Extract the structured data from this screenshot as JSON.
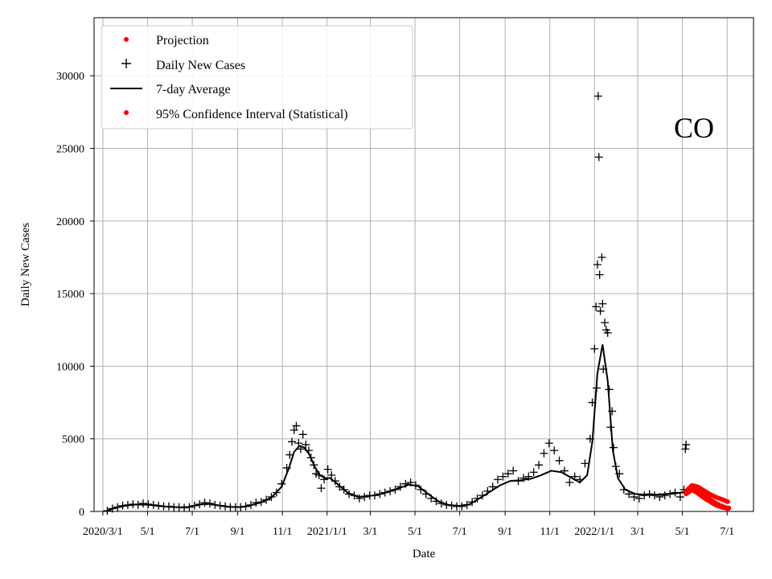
{
  "chart_data": {
    "type": "scatter",
    "title": "",
    "annotation": "CO",
    "xlabel": "Date",
    "ylabel": "Daily New Cases",
    "x_axis_type": "date",
    "xlim": [
      "2020-02-18",
      "2022-08-06"
    ],
    "ylim": [
      0,
      34000
    ],
    "grid": true,
    "legend_position": "upper-left",
    "x_ticks": [
      {
        "date": "2020-03-01",
        "label": "2020/3/1"
      },
      {
        "date": "2020-05-01",
        "label": "5/1"
      },
      {
        "date": "2020-07-01",
        "label": "7/1"
      },
      {
        "date": "2020-09-01",
        "label": "9/1"
      },
      {
        "date": "2020-11-01",
        "label": "11/1"
      },
      {
        "date": "2021-01-01",
        "label": "2021/1/1"
      },
      {
        "date": "2021-03-01",
        "label": "3/1"
      },
      {
        "date": "2021-05-01",
        "label": "5/1"
      },
      {
        "date": "2021-07-01",
        "label": "7/1"
      },
      {
        "date": "2021-09-01",
        "label": "9/1"
      },
      {
        "date": "2021-11-01",
        "label": "11/1"
      },
      {
        "date": "2022-01-01",
        "label": "2022/1/1"
      },
      {
        "date": "2022-03-01",
        "label": "3/1"
      },
      {
        "date": "2022-05-01",
        "label": "5/1"
      },
      {
        "date": "2022-07-01",
        "label": "7/1"
      }
    ],
    "y_ticks": [
      0,
      5000,
      10000,
      15000,
      20000,
      25000,
      30000
    ],
    "colors": {
      "daily": "#000000",
      "average": "#000000",
      "projection": "#ff0000",
      "ci": "#ff0000"
    },
    "series": [
      {
        "name": "Projection",
        "style": "red-dot",
        "points": [
          [
            "2022-05-06",
            1300
          ],
          [
            "2022-05-10",
            1550
          ],
          [
            "2022-05-14",
            1650
          ],
          [
            "2022-05-18",
            1580
          ],
          [
            "2022-05-22",
            1450
          ],
          [
            "2022-05-26",
            1300
          ],
          [
            "2022-05-30",
            1150
          ],
          [
            "2022-06-03",
            1000
          ],
          [
            "2022-06-07",
            850
          ],
          [
            "2022-06-11",
            700
          ],
          [
            "2022-06-15",
            580
          ],
          [
            "2022-06-19",
            470
          ],
          [
            "2022-06-23",
            380
          ],
          [
            "2022-06-27",
            300
          ],
          [
            "2022-07-03",
            230
          ]
        ]
      },
      {
        "name": "Daily New Cases",
        "style": "plus",
        "points": [
          [
            "2020-03-07",
            50
          ],
          [
            "2020-03-14",
            200
          ],
          [
            "2020-03-21",
            300
          ],
          [
            "2020-03-28",
            400
          ],
          [
            "2020-04-04",
            450
          ],
          [
            "2020-04-11",
            500
          ],
          [
            "2020-04-18",
            450
          ],
          [
            "2020-04-25",
            550
          ],
          [
            "2020-05-02",
            500
          ],
          [
            "2020-05-09",
            450
          ],
          [
            "2020-05-16",
            400
          ],
          [
            "2020-05-23",
            350
          ],
          [
            "2020-05-30",
            350
          ],
          [
            "2020-06-06",
            300
          ],
          [
            "2020-06-13",
            300
          ],
          [
            "2020-06-20",
            250
          ],
          [
            "2020-06-27",
            300
          ],
          [
            "2020-07-04",
            400
          ],
          [
            "2020-07-11",
            500
          ],
          [
            "2020-07-18",
            600
          ],
          [
            "2020-07-25",
            550
          ],
          [
            "2020-08-01",
            450
          ],
          [
            "2020-08-08",
            400
          ],
          [
            "2020-08-15",
            350
          ],
          [
            "2020-08-22",
            300
          ],
          [
            "2020-08-29",
            300
          ],
          [
            "2020-09-05",
            300
          ],
          [
            "2020-09-12",
            350
          ],
          [
            "2020-09-19",
            450
          ],
          [
            "2020-09-26",
            600
          ],
          [
            "2020-10-03",
            650
          ],
          [
            "2020-10-10",
            800
          ],
          [
            "2020-10-17",
            1000
          ],
          [
            "2020-10-24",
            1300
          ],
          [
            "2020-10-31",
            1900
          ],
          [
            "2020-11-07",
            3000
          ],
          [
            "2020-11-11",
            3900
          ],
          [
            "2020-11-14",
            4800
          ],
          [
            "2020-11-17",
            5600
          ],
          [
            "2020-11-20",
            5900
          ],
          [
            "2020-11-23",
            4700
          ],
          [
            "2020-11-26",
            4300
          ],
          [
            "2020-11-29",
            5300
          ],
          [
            "2020-12-03",
            4600
          ],
          [
            "2020-12-07",
            4200
          ],
          [
            "2020-12-10",
            3700
          ],
          [
            "2020-12-14",
            3200
          ],
          [
            "2020-12-17",
            2600
          ],
          [
            "2020-12-21",
            2500
          ],
          [
            "2020-12-24",
            1600
          ],
          [
            "2020-12-28",
            2200
          ],
          [
            "2021-01-02",
            2900
          ],
          [
            "2021-01-07",
            2500
          ],
          [
            "2021-01-12",
            2100
          ],
          [
            "2021-01-18",
            1700
          ],
          [
            "2021-01-24",
            1500
          ],
          [
            "2021-01-31",
            1200
          ],
          [
            "2021-02-07",
            1100
          ],
          [
            "2021-02-14",
            900
          ],
          [
            "2021-02-21",
            1000
          ],
          [
            "2021-02-28",
            1100
          ],
          [
            "2021-03-07",
            1100
          ],
          [
            "2021-03-14",
            1200
          ],
          [
            "2021-03-21",
            1300
          ],
          [
            "2021-03-28",
            1400
          ],
          [
            "2021-04-04",
            1500
          ],
          [
            "2021-04-11",
            1700
          ],
          [
            "2021-04-18",
            1900
          ],
          [
            "2021-04-25",
            2000
          ],
          [
            "2021-05-02",
            1800
          ],
          [
            "2021-05-09",
            1500
          ],
          [
            "2021-05-16",
            1200
          ],
          [
            "2021-05-23",
            900
          ],
          [
            "2021-05-30",
            700
          ],
          [
            "2021-06-06",
            550
          ],
          [
            "2021-06-13",
            450
          ],
          [
            "2021-06-20",
            400
          ],
          [
            "2021-06-27",
            350
          ],
          [
            "2021-07-04",
            350
          ],
          [
            "2021-07-11",
            450
          ],
          [
            "2021-07-18",
            650
          ],
          [
            "2021-07-25",
            900
          ],
          [
            "2021-08-01",
            1100
          ],
          [
            "2021-08-08",
            1400
          ],
          [
            "2021-08-15",
            1700
          ],
          [
            "2021-08-22",
            2200
          ],
          [
            "2021-08-29",
            2400
          ],
          [
            "2021-09-05",
            2600
          ],
          [
            "2021-09-12",
            2800
          ],
          [
            "2021-09-19",
            2100
          ],
          [
            "2021-09-26",
            2300
          ],
          [
            "2021-10-03",
            2400
          ],
          [
            "2021-10-10",
            2700
          ],
          [
            "2021-10-17",
            3200
          ],
          [
            "2021-10-24",
            4000
          ],
          [
            "2021-10-31",
            4700
          ],
          [
            "2021-11-07",
            4200
          ],
          [
            "2021-11-14",
            3500
          ],
          [
            "2021-11-21",
            2800
          ],
          [
            "2021-11-28",
            2000
          ],
          [
            "2021-12-05",
            2400
          ],
          [
            "2021-12-12",
            2200
          ],
          [
            "2021-12-19",
            3300
          ],
          [
            "2021-12-26",
            5000
          ],
          [
            "2021-12-29",
            7500
          ],
          [
            "2022-01-01",
            11200
          ],
          [
            "2022-01-03",
            14100
          ],
          [
            "2022-01-04",
            8500
          ],
          [
            "2022-01-05",
            17000
          ],
          [
            "2022-01-06",
            28600
          ],
          [
            "2022-01-07",
            24400
          ],
          [
            "2022-01-08",
            16300
          ],
          [
            "2022-01-09",
            13800
          ],
          [
            "2022-01-11",
            17500
          ],
          [
            "2022-01-12",
            14300
          ],
          [
            "2022-01-13",
            9800
          ],
          [
            "2022-01-15",
            13000
          ],
          [
            "2022-01-17",
            12500
          ],
          [
            "2022-01-19",
            12300
          ],
          [
            "2022-01-21",
            8400
          ],
          [
            "2022-01-23",
            5800
          ],
          [
            "2022-01-25",
            6900
          ],
          [
            "2022-01-27",
            4400
          ],
          [
            "2022-01-30",
            3100
          ],
          [
            "2022-02-04",
            2600
          ],
          [
            "2022-02-10",
            1500
          ],
          [
            "2022-02-17",
            1200
          ],
          [
            "2022-02-24",
            1000
          ],
          [
            "2022-03-03",
            900
          ],
          [
            "2022-03-10",
            1100
          ],
          [
            "2022-03-17",
            1200
          ],
          [
            "2022-03-24",
            1100
          ],
          [
            "2022-03-31",
            1000
          ],
          [
            "2022-04-07",
            1100
          ],
          [
            "2022-04-14",
            1200
          ],
          [
            "2022-04-21",
            1300
          ],
          [
            "2022-04-28",
            1000
          ],
          [
            "2022-05-03",
            1500
          ],
          [
            "2022-05-05",
            4300
          ],
          [
            "2022-05-06",
            4600
          ]
        ]
      },
      {
        "name": "7-day Average",
        "style": "line",
        "points": [
          [
            "2020-03-07",
            80
          ],
          [
            "2020-03-21",
            280
          ],
          [
            "2020-04-04",
            420
          ],
          [
            "2020-04-18",
            480
          ],
          [
            "2020-05-02",
            460
          ],
          [
            "2020-05-16",
            380
          ],
          [
            "2020-05-30",
            320
          ],
          [
            "2020-06-13",
            280
          ],
          [
            "2020-06-27",
            310
          ],
          [
            "2020-07-11",
            470
          ],
          [
            "2020-07-25",
            520
          ],
          [
            "2020-08-08",
            400
          ],
          [
            "2020-08-22",
            320
          ],
          [
            "2020-09-05",
            300
          ],
          [
            "2020-09-19",
            420
          ],
          [
            "2020-10-03",
            620
          ],
          [
            "2020-10-17",
            950
          ],
          [
            "2020-10-31",
            1700
          ],
          [
            "2020-11-10",
            3000
          ],
          [
            "2020-11-17",
            4100
          ],
          [
            "2020-11-24",
            4500
          ],
          [
            "2020-12-01",
            4400
          ],
          [
            "2020-12-08",
            3900
          ],
          [
            "2020-12-15",
            3100
          ],
          [
            "2020-12-22",
            2500
          ],
          [
            "2020-12-29",
            2300
          ],
          [
            "2021-01-05",
            2300
          ],
          [
            "2021-01-15",
            1900
          ],
          [
            "2021-01-29",
            1300
          ],
          [
            "2021-02-12",
            1000
          ],
          [
            "2021-02-26",
            1050
          ],
          [
            "2021-03-12",
            1150
          ],
          [
            "2021-03-26",
            1350
          ],
          [
            "2021-04-09",
            1600
          ],
          [
            "2021-04-23",
            1850
          ],
          [
            "2021-05-05",
            1750
          ],
          [
            "2021-05-19",
            1200
          ],
          [
            "2021-06-02",
            700
          ],
          [
            "2021-06-16",
            450
          ],
          [
            "2021-06-30",
            380
          ],
          [
            "2021-07-14",
            480
          ],
          [
            "2021-07-28",
            900
          ],
          [
            "2021-08-11",
            1350
          ],
          [
            "2021-08-25",
            1800
          ],
          [
            "2021-09-08",
            2100
          ],
          [
            "2021-09-22",
            2150
          ],
          [
            "2021-10-06",
            2250
          ],
          [
            "2021-10-20",
            2500
          ],
          [
            "2021-11-03",
            2800
          ],
          [
            "2021-11-17",
            2700
          ],
          [
            "2021-12-01",
            2300
          ],
          [
            "2021-12-12",
            2000
          ],
          [
            "2021-12-22",
            2500
          ],
          [
            "2021-12-29",
            4800
          ],
          [
            "2022-01-05",
            9500
          ],
          [
            "2022-01-12",
            11500
          ],
          [
            "2022-01-19",
            9000
          ],
          [
            "2022-01-26",
            4200
          ],
          [
            "2022-02-02",
            2300
          ],
          [
            "2022-02-12",
            1500
          ],
          [
            "2022-02-26",
            1200
          ],
          [
            "2022-03-12",
            1150
          ],
          [
            "2022-03-26",
            1150
          ],
          [
            "2022-04-09",
            1200
          ],
          [
            "2022-04-23",
            1250
          ],
          [
            "2022-05-05",
            1350
          ]
        ]
      },
      {
        "name": "95% Confidence Interval (Statistical)",
        "style": "red-dot-band",
        "points_lower": [
          [
            "2022-05-06",
            1200
          ],
          [
            "2022-05-14",
            1500
          ],
          [
            "2022-05-22",
            1250
          ],
          [
            "2022-05-30",
            950
          ],
          [
            "2022-06-07",
            700
          ],
          [
            "2022-06-15",
            450
          ],
          [
            "2022-06-23",
            300
          ],
          [
            "2022-07-03",
            180
          ]
        ],
        "points_upper": [
          [
            "2022-05-06",
            1400
          ],
          [
            "2022-05-14",
            1800
          ],
          [
            "2022-05-22",
            1700
          ],
          [
            "2022-05-30",
            1450
          ],
          [
            "2022-06-07",
            1200
          ],
          [
            "2022-06-15",
            1000
          ],
          [
            "2022-06-23",
            850
          ],
          [
            "2022-07-03",
            650
          ]
        ]
      }
    ]
  }
}
